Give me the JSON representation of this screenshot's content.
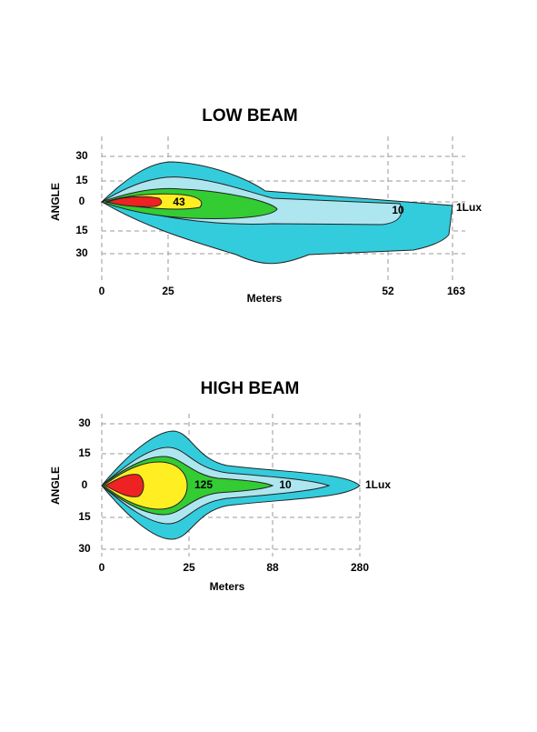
{
  "diagrams": [
    {
      "title": "LOW BEAM",
      "y_label": "ANGLE",
      "x_label": "Meters",
      "y_ticks": [
        "30",
        "15",
        "0",
        "15",
        "30"
      ],
      "x_ticks": [
        "0",
        "25",
        "52",
        "163"
      ],
      "contour_labels": [
        "43",
        "10",
        "1Lux"
      ]
    },
    {
      "title": "HIGH BEAM",
      "y_label": "ANGLE",
      "x_label": "Meters",
      "y_ticks": [
        "30",
        "15",
        "0",
        "15",
        "30"
      ],
      "x_ticks": [
        "0",
        "25",
        "88",
        "280"
      ],
      "contour_labels": [
        "125",
        "10",
        "1Lux"
      ]
    }
  ]
}
